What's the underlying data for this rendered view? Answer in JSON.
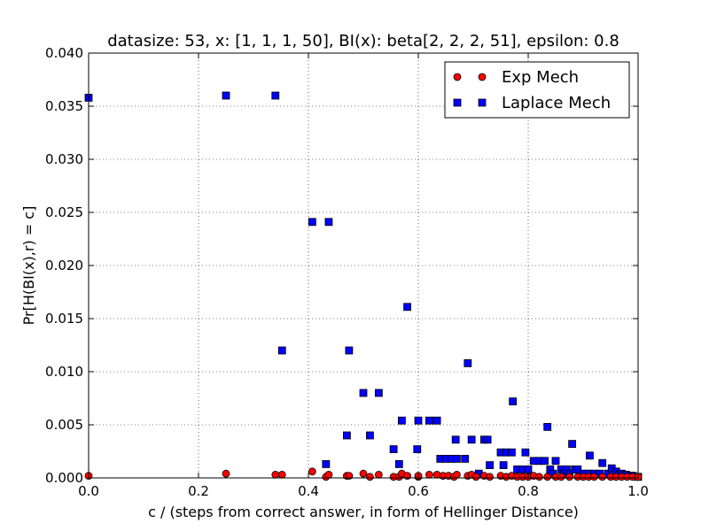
{
  "chart_data": {
    "type": "scatter",
    "title": "datasize: 53, x: [1, 1, 1, 50], BI(x): beta[2, 2, 2, 51], epsilon: 0.8",
    "xlabel": "c / (steps from correct answer, in form of Hellinger Distance)",
    "ylabel": "Pr[H(BI(x),r) = c]",
    "xlim": [
      0.0,
      1.0
    ],
    "ylim": [
      0.0,
      0.04
    ],
    "x_ticks": [
      "0.0",
      "0.2",
      "0.4",
      "0.6",
      "0.8",
      "1.0"
    ],
    "y_ticks": [
      "0.000",
      "0.005",
      "0.010",
      "0.015",
      "0.020",
      "0.025",
      "0.030",
      "0.035",
      "0.040"
    ],
    "grid": true,
    "legend_position": "top-right",
    "series": [
      {
        "name": "Exp Mech",
        "marker": "circle",
        "color": "#ff0000",
        "points": [
          [
            0.0,
            0.0002
          ],
          [
            0.25,
            0.0004
          ],
          [
            0.34,
            0.0003
          ],
          [
            0.352,
            0.0003
          ],
          [
            0.407,
            0.0006
          ],
          [
            0.432,
            0.0001
          ],
          [
            0.437,
            0.0003
          ],
          [
            0.47,
            0.0002
          ],
          [
            0.474,
            0.0002
          ],
          [
            0.5,
            0.0004
          ],
          [
            0.512,
            0.0001
          ],
          [
            0.528,
            0.0003
          ],
          [
            0.555,
            0.0001
          ],
          [
            0.565,
            0.0001
          ],
          [
            0.57,
            0.0004
          ],
          [
            0.58,
            0.0002
          ],
          [
            0.6,
            0.0001
          ],
          [
            0.6,
            0.0002
          ],
          [
            0.62,
            0.0003
          ],
          [
            0.634,
            0.0003
          ],
          [
            0.645,
            0.0002
          ],
          [
            0.655,
            0.0002
          ],
          [
            0.665,
            0.0001
          ],
          [
            0.67,
            0.0003
          ],
          [
            0.69,
            0.0002
          ],
          [
            0.697,
            0.0003
          ],
          [
            0.705,
            0.0001
          ],
          [
            0.72,
            0.0002
          ],
          [
            0.73,
            0.0001
          ],
          [
            0.75,
            0.0002
          ],
          [
            0.76,
            0.0001
          ],
          [
            0.77,
            0.0002
          ],
          [
            0.78,
            0.0001
          ],
          [
            0.79,
            0.0001
          ],
          [
            0.8,
            0.0001
          ],
          [
            0.81,
            0.0002
          ],
          [
            0.82,
            0.0001
          ],
          [
            0.835,
            0.0001
          ],
          [
            0.85,
            0.0001
          ],
          [
            0.86,
            0.0001
          ],
          [
            0.875,
            0.0001
          ],
          [
            0.89,
            0.0001
          ],
          [
            0.9,
            0.0001
          ],
          [
            0.91,
            0.0001
          ],
          [
            0.92,
            0.0001
          ],
          [
            0.935,
            0.0001
          ],
          [
            0.95,
            0.0001
          ],
          [
            0.96,
            0.0001
          ],
          [
            0.97,
            0.0001
          ],
          [
            0.98,
            0.0001
          ],
          [
            0.99,
            0.0001
          ],
          [
            1.0,
            0.0001
          ]
        ]
      },
      {
        "name": "Laplace Mech",
        "marker": "square",
        "color": "#0000ff",
        "points": [
          [
            0.0,
            0.0358
          ],
          [
            0.25,
            0.036
          ],
          [
            0.34,
            0.036
          ],
          [
            0.352,
            0.012
          ],
          [
            0.407,
            0.0241
          ],
          [
            0.437,
            0.0241
          ],
          [
            0.432,
            0.0013
          ],
          [
            0.47,
            0.004
          ],
          [
            0.474,
            0.012
          ],
          [
            0.5,
            0.008
          ],
          [
            0.512,
            0.004
          ],
          [
            0.528,
            0.008
          ],
          [
            0.555,
            0.0027
          ],
          [
            0.565,
            0.0013
          ],
          [
            0.57,
            0.0054
          ],
          [
            0.58,
            0.0161
          ],
          [
            0.598,
            0.0027
          ],
          [
            0.6,
            0.0054
          ],
          [
            0.62,
            0.0054
          ],
          [
            0.634,
            0.0054
          ],
          [
            0.64,
            0.0018
          ],
          [
            0.65,
            0.0018
          ],
          [
            0.66,
            0.0018
          ],
          [
            0.668,
            0.0036
          ],
          [
            0.67,
            0.0018
          ],
          [
            0.685,
            0.0018
          ],
          [
            0.69,
            0.0108
          ],
          [
            0.697,
            0.0036
          ],
          [
            0.71,
            0.0004
          ],
          [
            0.72,
            0.0036
          ],
          [
            0.726,
            0.0036
          ],
          [
            0.73,
            0.0012
          ],
          [
            0.75,
            0.0024
          ],
          [
            0.755,
            0.0012
          ],
          [
            0.76,
            0.0024
          ],
          [
            0.77,
            0.0024
          ],
          [
            0.772,
            0.0072
          ],
          [
            0.78,
            0.0008
          ],
          [
            0.79,
            0.0008
          ],
          [
            0.795,
            0.0024
          ],
          [
            0.8,
            0.0008
          ],
          [
            0.81,
            0.0016
          ],
          [
            0.82,
            0.0016
          ],
          [
            0.83,
            0.0016
          ],
          [
            0.835,
            0.0048
          ],
          [
            0.84,
            0.0008
          ],
          [
            0.845,
            0.0004
          ],
          [
            0.85,
            0.0016
          ],
          [
            0.86,
            0.0008
          ],
          [
            0.865,
            0.0004
          ],
          [
            0.87,
            0.0008
          ],
          [
            0.875,
            0.0004
          ],
          [
            0.88,
            0.0032
          ],
          [
            0.885,
            0.0008
          ],
          [
            0.89,
            0.0008
          ],
          [
            0.9,
            0.0004
          ],
          [
            0.91,
            0.0004
          ],
          [
            0.912,
            0.0021
          ],
          [
            0.92,
            0.0004
          ],
          [
            0.93,
            0.0004
          ],
          [
            0.935,
            0.0014
          ],
          [
            0.945,
            0.0004
          ],
          [
            0.952,
            0.0009
          ],
          [
            0.96,
            0.0006
          ],
          [
            0.965,
            0.0003
          ],
          [
            0.97,
            0.0004
          ],
          [
            0.978,
            0.0003
          ],
          [
            0.985,
            0.0002
          ],
          [
            0.99,
            0.0002
          ],
          [
            1.0,
            0.0001
          ]
        ]
      }
    ]
  }
}
